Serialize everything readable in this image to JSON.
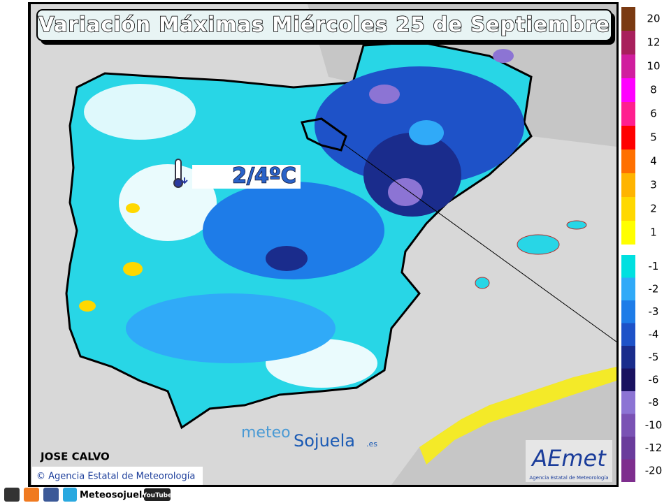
{
  "title": "Variación Máximas Miércoles 25 de Septiembre",
  "map": {
    "annotation": "2/4ºC"
  },
  "legend": {
    "warm": [
      {
        "label": "20",
        "color": "#7a3a12"
      },
      {
        "label": "12",
        "color": "#a8205c"
      },
      {
        "label": "10",
        "color": "#d01e9e"
      },
      {
        "label": "8",
        "color": "#ff00ff"
      },
      {
        "label": "6",
        "color": "#ff1f8f"
      },
      {
        "label": "5",
        "color": "#ff0000"
      },
      {
        "label": "4",
        "color": "#ff7000"
      },
      {
        "label": "3",
        "color": "#ffb400"
      },
      {
        "label": "2",
        "color": "#ffd800"
      },
      {
        "label": "1",
        "color": "#ffff00"
      }
    ],
    "cool": [
      {
        "label": "-1",
        "color": "#00e0e0"
      },
      {
        "label": "-2",
        "color": "#30aaf8"
      },
      {
        "label": "-3",
        "color": "#1e7ce8"
      },
      {
        "label": "-4",
        "color": "#1e52c8"
      },
      {
        "label": "-5",
        "color": "#1a2c8c"
      },
      {
        "label": "-6",
        "color": "#1a1260"
      },
      {
        "label": "-8",
        "color": "#8c74d4"
      },
      {
        "label": "-10",
        "color": "#7a52b4"
      },
      {
        "label": "-12",
        "color": "#6a3c9c"
      },
      {
        "label": "-20",
        "color": "#7e2e8e"
      }
    ]
  },
  "credits": {
    "author": "JOSE CALVO",
    "copyright": "© Agencia Estatal de Meteorología",
    "watermark_meteo": "meteo",
    "watermark_sojuela": "Sojuela",
    "watermark_es": ".es",
    "logo": "AEmet",
    "logo_subtitle": "Agencia Estatal de Meteorología"
  },
  "footer": {
    "brand": "Meteosojuela",
    "youtube": "YouTube"
  }
}
